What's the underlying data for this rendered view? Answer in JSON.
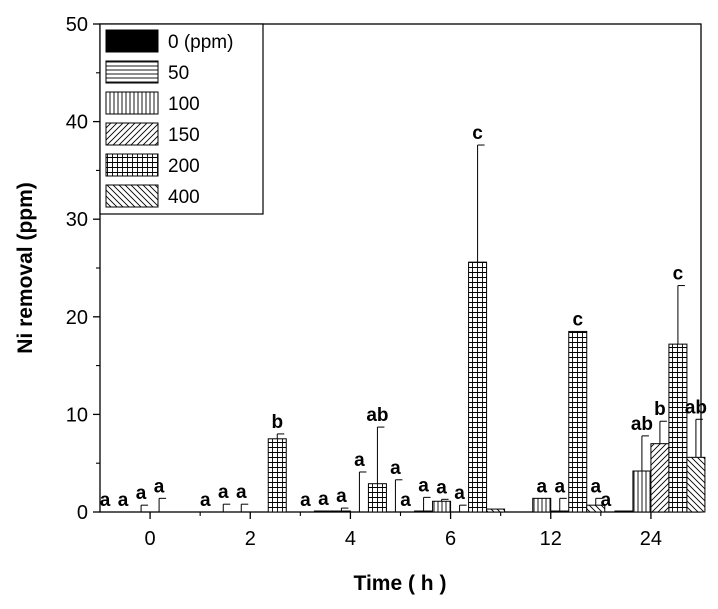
{
  "chart_data": {
    "type": "bar",
    "xlabel": "Time ( h )",
    "ylabel": "Ni removal (ppm)",
    "ylim": [
      0,
      50
    ],
    "yticks": [
      0,
      10,
      20,
      30,
      40,
      50
    ],
    "categories": [
      "0",
      "2",
      "4",
      "6",
      "12",
      "24"
    ],
    "legend": {
      "position": "top-left"
    },
    "grid": false,
    "series": [
      {
        "name": "0 (ppm)",
        "pattern": "solid",
        "values": [
          0,
          0,
          0,
          0,
          0,
          0
        ],
        "errors": [
          0,
          0,
          0,
          0,
          0,
          0
        ],
        "letters": [
          "a",
          "a",
          "a",
          "a",
          "",
          "a"
        ]
      },
      {
        "name": "50",
        "pattern": "horizontal",
        "values": [
          0,
          0,
          0.1,
          0.1,
          0,
          0.1
        ],
        "errors": [
          0,
          0.8,
          0,
          1.4,
          0,
          0
        ],
        "letters": [
          "a",
          "a",
          "a",
          "a",
          "",
          ""
        ]
      },
      {
        "name": "100",
        "pattern": "vertical",
        "values": [
          0,
          0,
          0.1,
          1.1,
          1.4,
          4.2
        ],
        "errors": [
          0.7,
          0.8,
          0.3,
          0.2,
          0,
          3.6
        ],
        "letters": [
          "a",
          "a",
          "a",
          "a",
          "a",
          "ab"
        ]
      },
      {
        "name": "150",
        "pattern": "diagonal",
        "values": [
          0,
          0,
          0,
          0,
          0.1,
          7.0
        ],
        "errors": [
          1.4,
          0,
          4.1,
          0.7,
          1.3,
          2.3
        ],
        "letters": [
          "a",
          "",
          "a",
          "a",
          "a",
          "b"
        ]
      },
      {
        "name": "200",
        "pattern": "grid",
        "values": [
          0,
          7.5,
          2.9,
          25.6,
          18.5,
          17.2
        ],
        "errors": [
          0,
          0.5,
          5.8,
          12.0,
          0,
          6.0
        ],
        "letters": [
          "",
          "b",
          "ab",
          "c",
          "c",
          "c"
        ]
      },
      {
        "name": "400",
        "pattern": "antidiagonal",
        "values": [
          0,
          0,
          0,
          0.3,
          0.7,
          5.6
        ],
        "errors": [
          0,
          0,
          3.3,
          0,
          0.7,
          3.9
        ],
        "letters": [
          "",
          "",
          "a",
          "",
          "a",
          "ab"
        ]
      }
    ]
  }
}
